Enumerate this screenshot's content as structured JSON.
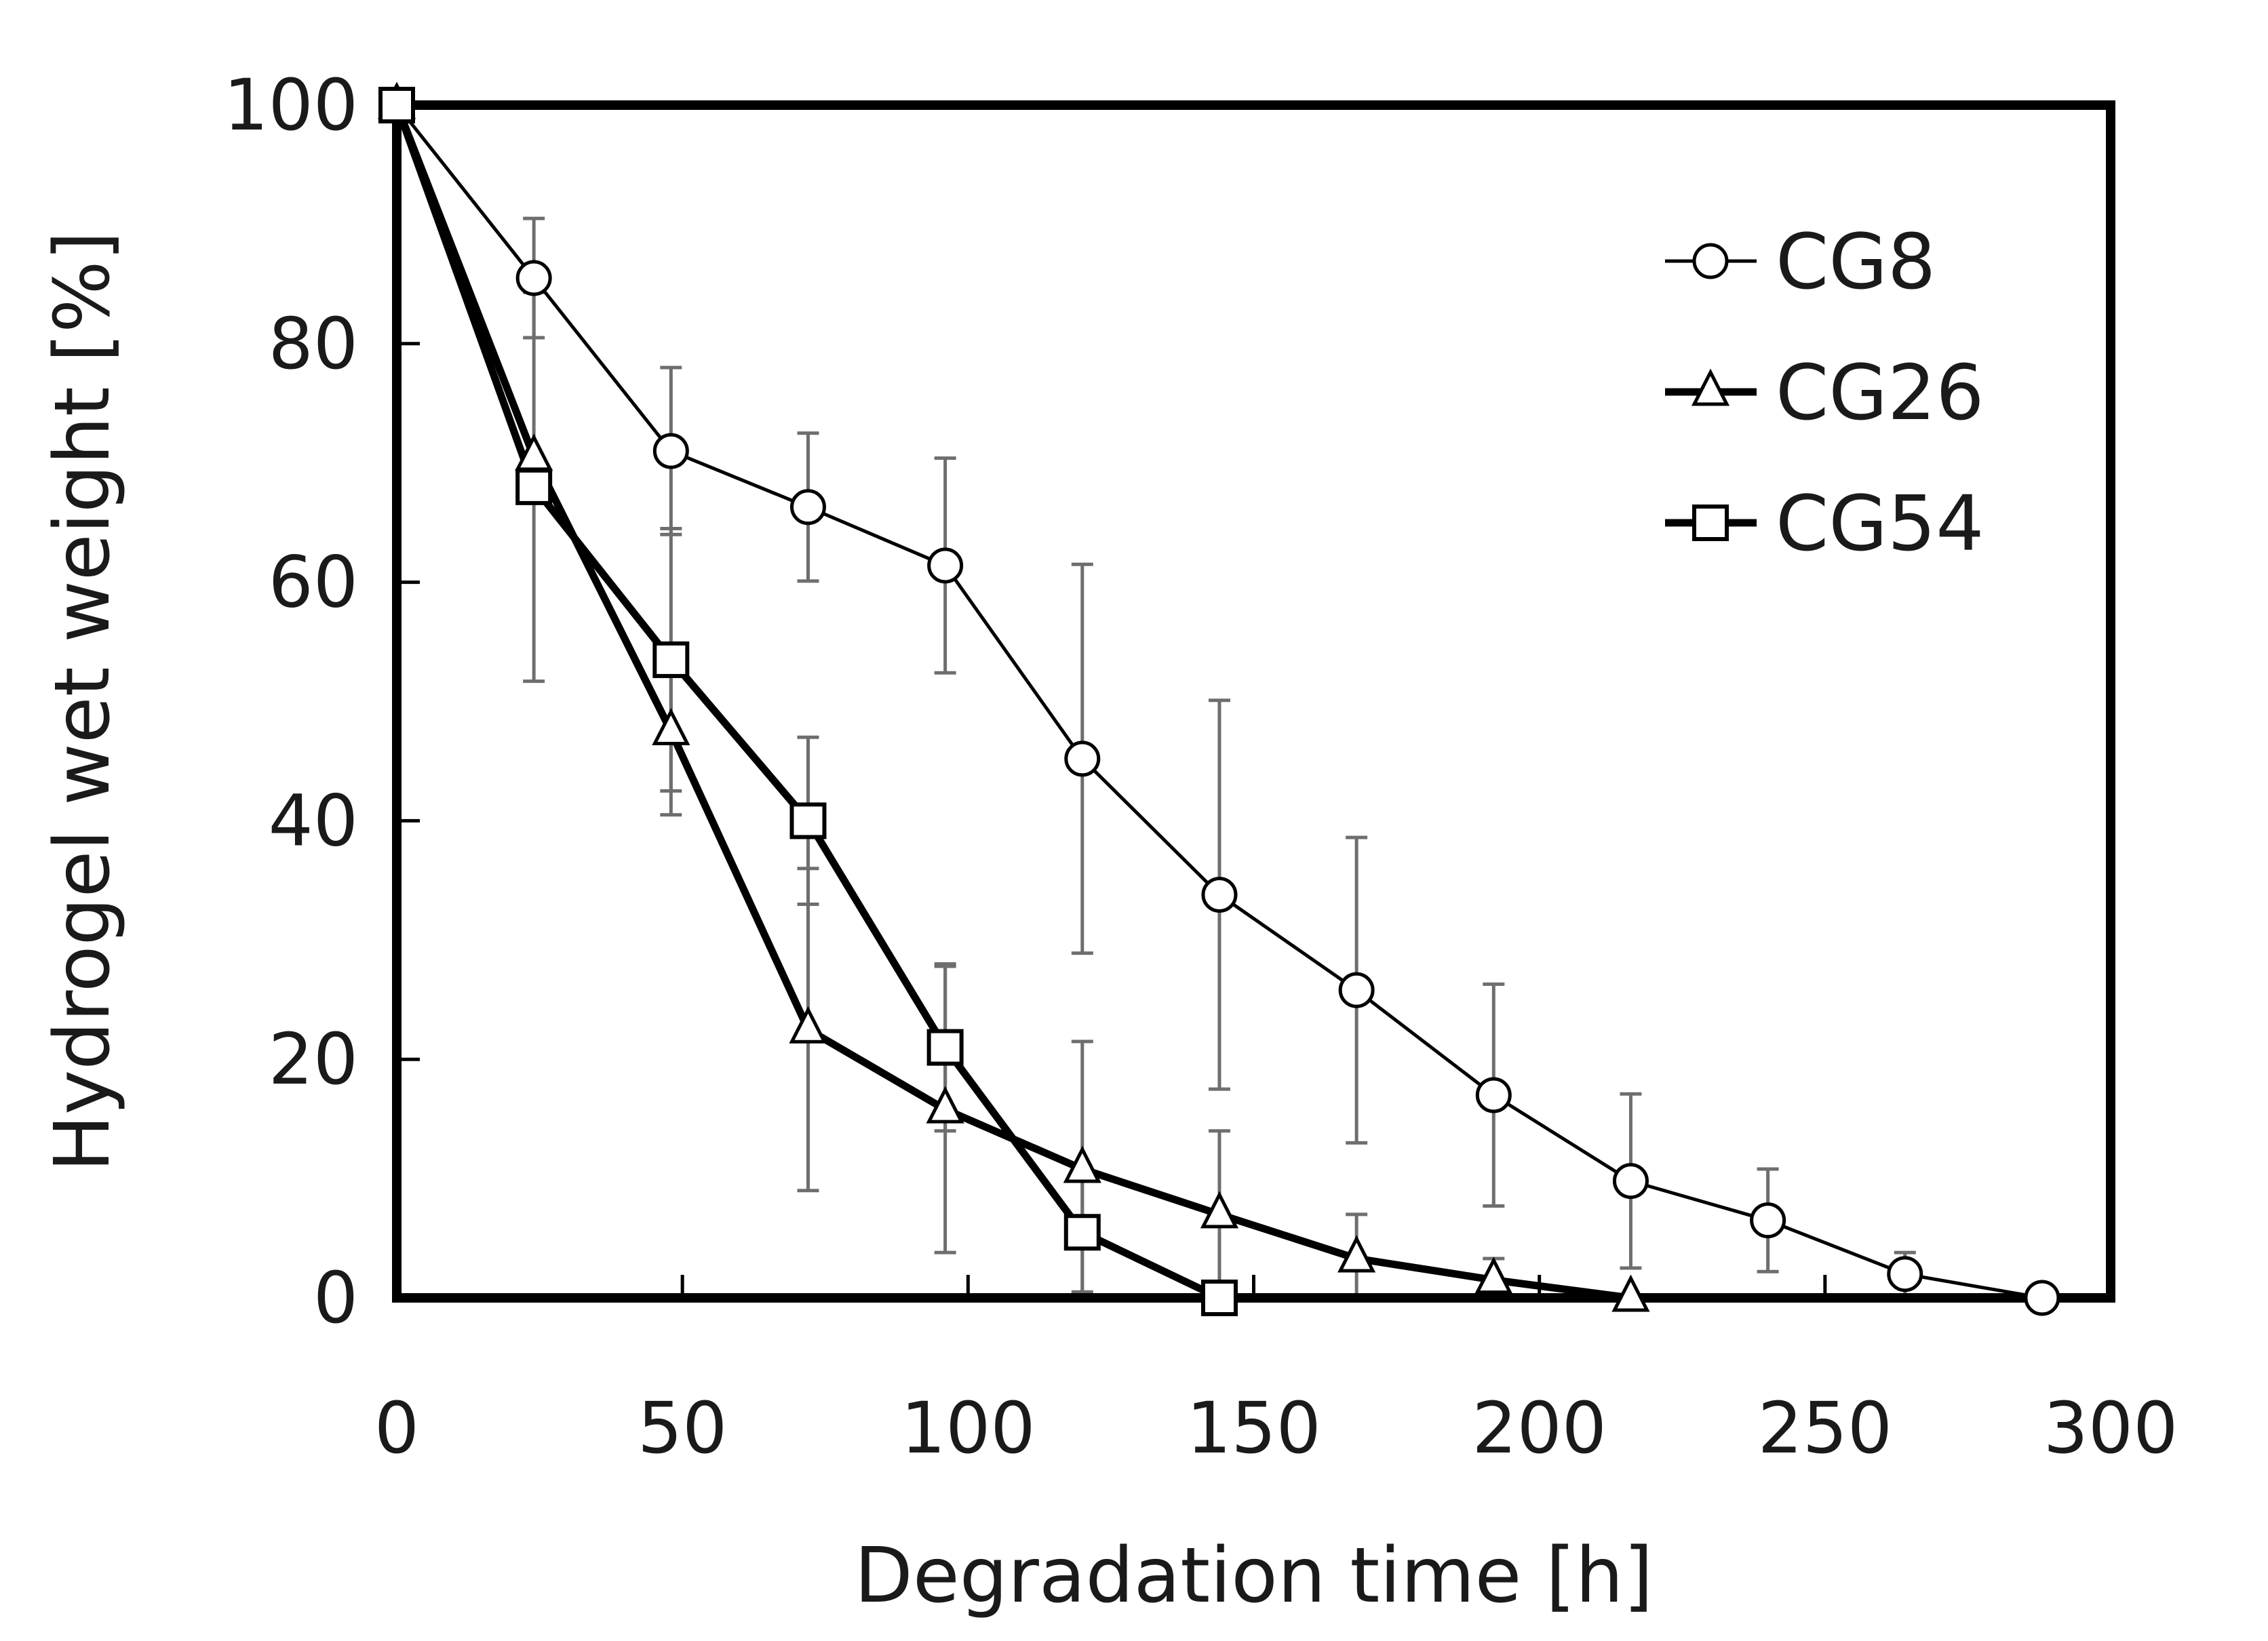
{
  "chart_data": {
    "type": "line",
    "title": "",
    "xlabel": "Degradation time [h]",
    "ylabel": "Hydrogel wet weight [%]",
    "xlim": [
      0,
      300
    ],
    "ylim": [
      0,
      100
    ],
    "xticks": [
      0,
      50,
      100,
      150,
      200,
      250,
      300
    ],
    "yticks": [
      0,
      20,
      40,
      60,
      80,
      100
    ],
    "grid": false,
    "legend_position": "top-right",
    "series": [
      {
        "name": "CG8",
        "marker": "circle",
        "x": [
          0,
          24,
          48,
          72,
          96,
          120,
          144,
          168,
          192,
          216,
          240,
          264,
          288
        ],
        "y": [
          100,
          85.5,
          71,
          66.3,
          61.4,
          45.2,
          33.8,
          25.8,
          17,
          9.8,
          6.5,
          2,
          0
        ],
        "err": [
          0,
          5,
          7,
          6.2,
          9,
          16.3,
          16.3,
          12.8,
          9.3,
          7.3,
          4.3,
          1.8,
          0
        ]
      },
      {
        "name": "CG26",
        "marker": "triangle",
        "x": [
          0,
          24,
          48,
          72,
          96,
          120,
          144,
          168,
          192,
          216
        ],
        "y": [
          100,
          70.5,
          47.5,
          22.5,
          15.8,
          10.8,
          7,
          3.3,
          1.5,
          0
        ],
        "err": [
          0,
          0,
          7,
          13.5,
          12,
          10.7,
          7,
          3.7,
          1.8,
          0
        ]
      },
      {
        "name": "CG54",
        "marker": "square",
        "x": [
          0,
          24,
          48,
          72,
          96,
          120,
          144
        ],
        "y": [
          100,
          68,
          53.5,
          40,
          21,
          5.5,
          0
        ],
        "err": [
          0,
          16.3,
          11,
          7,
          7,
          5,
          0
        ]
      }
    ]
  }
}
